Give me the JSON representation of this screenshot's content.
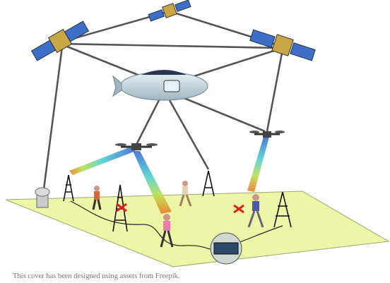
{
  "caption": "This cover has been designed using assets from Freepik."
}
